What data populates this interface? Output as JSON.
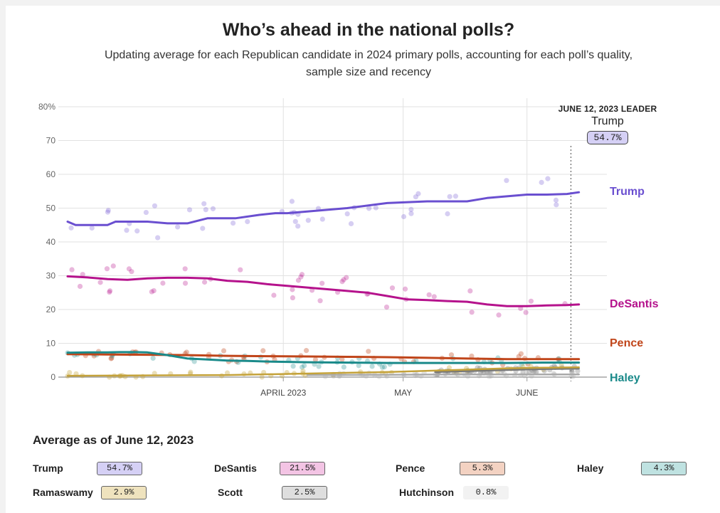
{
  "header": {
    "title": "Who’s ahead in the national polls?",
    "subtitle": "Updating average for each Republican candidate in 2024 primary polls, accounting for each poll’s quality, sample size and recency"
  },
  "leader": {
    "heading": "JUNE 12, 2023 LEADER",
    "name": "Trump",
    "value": "54.7%"
  },
  "chart_data": {
    "type": "line",
    "title": "Who’s ahead in the national polls?",
    "xlabel": "",
    "ylabel": "",
    "ylim": [
      0,
      80
    ],
    "y_ticks": [
      0,
      10,
      20,
      30,
      40,
      50,
      60,
      70,
      80
    ],
    "y_tick_labels": [
      "0",
      "10",
      "20",
      "30",
      "40",
      "50",
      "60",
      "70",
      "80%"
    ],
    "x_range_days": [
      0,
      135
    ],
    "x_ticks": [
      {
        "day": 54,
        "label": "APRIL 2023"
      },
      {
        "day": 84,
        "label": "MAY"
      },
      {
        "day": 115,
        "label": "JUNE"
      }
    ],
    "leader_day": 126,
    "grid": true,
    "series": [
      {
        "name": "Trump",
        "label": "Trump",
        "color": "#6a4fd0",
        "days": [
          0,
          2,
          5,
          10,
          12,
          20,
          25,
          30,
          35,
          38,
          42,
          48,
          52,
          55,
          60,
          70,
          80,
          90,
          95,
          100,
          105,
          110,
          115,
          120,
          125,
          128
        ],
        "values": [
          46,
          45,
          45,
          45,
          46,
          46,
          45.5,
          45.5,
          47,
          47,
          47,
          48,
          48.5,
          48.5,
          49,
          50,
          51.5,
          52,
          52,
          52,
          53,
          53.5,
          54,
          54,
          54.2,
          54.7
        ]
      },
      {
        "name": "DeSantis",
        "label": "DeSantis",
        "color": "#b5128c",
        "days": [
          0,
          5,
          10,
          15,
          20,
          25,
          30,
          35,
          40,
          45,
          50,
          55,
          60,
          65,
          70,
          75,
          80,
          85,
          90,
          95,
          100,
          105,
          110,
          115,
          120,
          125,
          128
        ],
        "values": [
          29.8,
          29.5,
          29,
          28.8,
          29.2,
          29.4,
          29.4,
          29.2,
          28.5,
          28.2,
          27.5,
          27,
          26.5,
          26,
          25.5,
          25,
          24,
          23,
          22.8,
          22.5,
          22.3,
          21.5,
          21,
          21,
          21.2,
          21.3,
          21.5
        ]
      },
      {
        "name": "Pence",
        "label": "Pence",
        "color": "#c0451a",
        "days": [
          0,
          10,
          20,
          30,
          40,
          50,
          60,
          70,
          80,
          90,
          100,
          110,
          120,
          128
        ],
        "values": [
          6.8,
          6.7,
          6.6,
          6.5,
          6.3,
          6.2,
          6.1,
          6,
          5.9,
          5.7,
          5.5,
          5.3,
          5.3,
          5.3
        ]
      },
      {
        "name": "Haley",
        "label": "Haley",
        "color": "#1a8a8a",
        "days": [
          0,
          5,
          10,
          13,
          15,
          17,
          20,
          25,
          30,
          35,
          40,
          45,
          50,
          55,
          60,
          70,
          80,
          90,
          100,
          110,
          120,
          128
        ],
        "values": [
          7.2,
          7.3,
          7.3,
          7.4,
          7.4,
          7.4,
          7.3,
          6.5,
          5.5,
          5.2,
          4.9,
          4.8,
          4.6,
          4.5,
          4.4,
          4.3,
          4.2,
          4.2,
          4.2,
          4.2,
          4.3,
          4.3
        ]
      },
      {
        "name": "Ramaswamy",
        "label": "",
        "color": "#c4a23a",
        "days": [
          0,
          40,
          80,
          100,
          110,
          120,
          128
        ],
        "values": [
          0.4,
          0.6,
          1.5,
          2.2,
          2.6,
          2.8,
          2.9
        ]
      },
      {
        "name": "Scott",
        "label": "",
        "color": "#777777",
        "days": [
          92,
          100,
          110,
          120,
          128
        ],
        "values": [
          1.5,
          1.8,
          2.1,
          2.4,
          2.5
        ]
      },
      {
        "name": "Hutchinson",
        "label": "",
        "color": "#aaaaaa",
        "days": [
          60,
          80,
          100,
          110,
          120,
          128
        ],
        "values": [
          0.6,
          0.7,
          0.8,
          0.8,
          0.8,
          0.8
        ]
      }
    ]
  },
  "averages": {
    "heading": "Average as of June 12, 2023",
    "items": [
      {
        "name": "Trump",
        "value": "54.7%",
        "color": "#d5d0f5"
      },
      {
        "name": "DeSantis",
        "value": "21.5%",
        "color": "#f3c4e4"
      },
      {
        "name": "Pence",
        "value": "5.3%",
        "color": "#f3d2c2"
      },
      {
        "name": "Haley",
        "value": "4.3%",
        "color": "#bfe2e1"
      },
      {
        "name": "Ramaswamy",
        "value": "2.9%",
        "color": "#efe3be"
      },
      {
        "name": "Scott",
        "value": "2.5%",
        "color": "#dedede"
      },
      {
        "name": "Hutchinson",
        "value": "0.8%",
        "color": "#f2f2f2"
      }
    ]
  }
}
